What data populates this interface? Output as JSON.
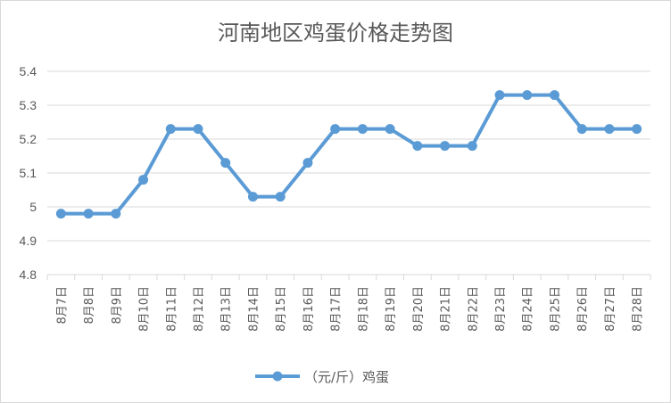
{
  "chart_data": {
    "type": "line",
    "title": "河南地区鸡蛋价格走势图",
    "xlabel": "",
    "ylabel": "",
    "categories": [
      "8月7日",
      "8月8日",
      "8月9日",
      "8月10日",
      "8月11日",
      "8月12日",
      "8月13日",
      "8月14日",
      "8月15日",
      "8月16日",
      "8月17日",
      "8月18日",
      "8月19日",
      "8月20日",
      "8月21日",
      "8月22日",
      "8月23日",
      "8月24日",
      "8月25日",
      "8月26日",
      "8月27日",
      "8月28日"
    ],
    "series": [
      {
        "name": "（元/斤）鸡蛋",
        "values": [
          4.98,
          4.98,
          4.98,
          5.08,
          5.23,
          5.23,
          5.13,
          5.03,
          5.03,
          5.13,
          5.23,
          5.23,
          5.23,
          5.18,
          5.18,
          5.18,
          5.33,
          5.33,
          5.33,
          5.23,
          5.23,
          5.23
        ]
      }
    ],
    "ylim": [
      4.8,
      5.4
    ],
    "yticks": [
      "4.8",
      "4.9",
      "5",
      "5.1",
      "5.2",
      "5.3",
      "5.4"
    ],
    "grid": true,
    "legend": "bottom",
    "colors": {
      "line": "#5b9bd5",
      "grid": "#d9d9d9",
      "text": "#595959"
    }
  }
}
